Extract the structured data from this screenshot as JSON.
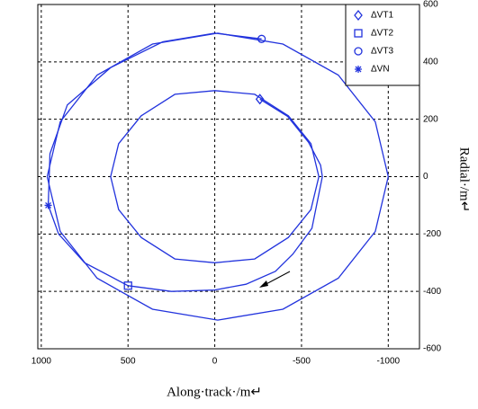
{
  "chart_data": {
    "type": "line",
    "x_label": "Along·track·/m↵",
    "y_label": "Radial·/m↵",
    "xlim": [
      1020,
      -1180
    ],
    "ylim": [
      -600,
      600
    ],
    "xticks": [
      1000,
      500,
      0,
      -500,
      -1000
    ],
    "yticks": [
      600,
      400,
      200,
      0,
      -200,
      -400,
      -600
    ],
    "grid": true,
    "legend": "upper right",
    "series": [
      {
        "color": "#2233dd",
        "x": [
          600,
          554,
          424,
          230,
          0,
          -230,
          -424,
          -554,
          -600,
          -554,
          -424,
          -230,
          0,
          230,
          424,
          554,
          600
        ],
        "values": [
          0,
          115,
          212,
          287,
          300,
          287,
          212,
          115,
          0,
          -115,
          -212,
          -287,
          -300,
          -287,
          -212,
          -115,
          0
        ]
      },
      {
        "color": "#2233dd",
        "x": [
          966,
          891,
          678,
          359,
          -17,
          -393,
          -712,
          -925,
          -1000,
          -925,
          -712,
          -393,
          -17,
          359,
          678,
          891,
          966
        ],
        "values": [
          0,
          191,
          354,
          462,
          500,
          462,
          354,
          191,
          0,
          -191,
          -354,
          -462,
          -500,
          -462,
          -354,
          -191,
          0
        ]
      },
      {
        "color": "#2233dd",
        "x": [
          -260,
          -420,
          -540,
          -610,
          -620,
          -560,
          -450,
          -350,
          -180,
          0,
          250,
          500
        ],
        "values": [
          270,
          210,
          120,
          40,
          0,
          -180,
          -270,
          -330,
          -375,
          -395,
          -400,
          -380
        ]
      },
      {
        "color": "#2233dd",
        "x": [
          500,
          750,
          900,
          960,
          950,
          850,
          600,
          300,
          0,
          -270
        ],
        "values": [
          -380,
          -300,
          -200,
          -100,
          80,
          250,
          380,
          470,
          500,
          480
        ]
      }
    ],
    "markers": [
      {
        "name": "ΔVT1",
        "shape": "diamond",
        "color": "#2233dd",
        "x": -260,
        "value": 270
      },
      {
        "name": "ΔVT2",
        "shape": "square",
        "color": "#2233dd",
        "x": 500,
        "value": -380
      },
      {
        "name": "ΔVT3",
        "shape": "circle",
        "color": "#2233dd",
        "x": -270,
        "value": 480
      },
      {
        "name": "ΔVN",
        "shape": "star",
        "color": "#2233dd",
        "x": 960,
        "value": -100
      }
    ]
  }
}
